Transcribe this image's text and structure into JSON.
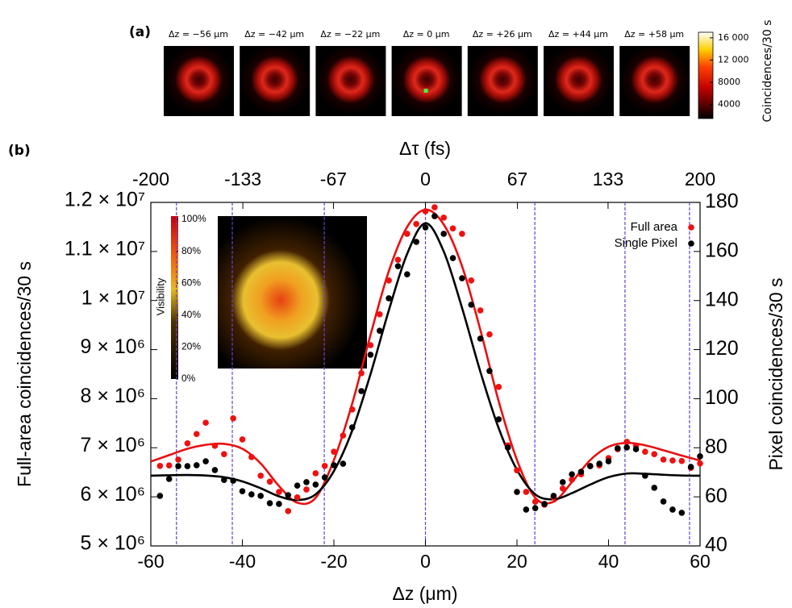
{
  "chart_data": [
    {
      "type": "image_strip",
      "panel_label": "(a)",
      "titles": [
        "Δz = −56 μm",
        "Δz = −42 μm",
        "Δz = −22 μm",
        "Δz = 0 μm",
        "Δz = +26 μm",
        "Δz = +44 μm",
        "Δz = +58 μm"
      ],
      "colorbar": {
        "label": "Coincidences/30 s",
        "lim": [
          1500,
          17000
        ],
        "ticks": [
          4000,
          8000,
          {
            "value": 12000,
            "label": "12 000"
          },
          {
            "value": 16000,
            "label": "16 000"
          }
        ]
      }
    },
    {
      "type": "scatter",
      "panel_label": "(b)",
      "xlabel": "Δz (μm)",
      "x2label": "Δτ (fs)",
      "ylabel": "Full-area coincidences/30 s",
      "y2label": "Pixel coincidences/30 s",
      "xlim": [
        -60,
        60
      ],
      "xticks": [
        -60,
        -40,
        -20,
        0,
        20,
        40,
        60
      ],
      "x2lim": [
        -200,
        200
      ],
      "x2ticks": [
        -200,
        -133,
        -67,
        0,
        67,
        133,
        200
      ],
      "ylim": [
        5000000,
        12000000
      ],
      "yticks": [
        {
          "value": 5000000,
          "label": "5 × 10⁶"
        },
        {
          "value": 6000000,
          "label": "6 × 10⁶"
        },
        {
          "value": 7000000,
          "label": "7 × 10⁶"
        },
        {
          "value": 8000000,
          "label": "8 × 10⁶"
        },
        {
          "value": 9000000,
          "label": "9 × 10⁶"
        },
        {
          "value": 10000000,
          "label": "1 × 10⁷"
        },
        {
          "value": 11000000,
          "label": "1.1 × 10⁷"
        },
        {
          "value": 12000000,
          "label": "1.2 × 10⁷"
        }
      ],
      "y2lim": [
        40,
        180
      ],
      "y2ticks": [
        40,
        60,
        80,
        100,
        120,
        140,
        160,
        180
      ],
      "legend": "upper right",
      "vlines": {
        "color": "#6a3fd0",
        "x": [
          -54.4,
          -42.2,
          -22.1,
          0,
          23.9,
          43.6,
          57.7
        ]
      },
      "series": [
        {
          "name": "Full area",
          "color": "#f01010",
          "x": [
            -58,
            -56,
            -54,
            -52,
            -50,
            -48,
            -46,
            -44,
            -42,
            -40,
            -38,
            -36,
            -34,
            -32,
            -30,
            -28,
            -26,
            -24,
            -22,
            -20,
            -18,
            -16,
            -14,
            -12,
            -10,
            -8,
            -6,
            -4,
            -2,
            0,
            2,
            4,
            6,
            8,
            10,
            12,
            14,
            16,
            18,
            20,
            22,
            24,
            26,
            28,
            30,
            32,
            34,
            36,
            38,
            40,
            42,
            44,
            46,
            48,
            50,
            52,
            54,
            56,
            58,
            60
          ],
          "values": [
            6630000,
            6640000,
            6760000,
            7090000,
            7280000,
            7510000,
            7040000,
            6870000,
            7600000,
            7170000,
            6810000,
            6430000,
            6310000,
            6100000,
            5710000,
            5990000,
            6150000,
            6480000,
            6630000,
            6920000,
            7250000,
            7780000,
            8520000,
            9090000,
            9720000,
            10410000,
            10830000,
            11360000,
            11560000,
            11820000,
            11900000,
            11690000,
            11470000,
            11360000,
            10410000,
            9800000,
            9310000,
            8240000,
            7050000,
            6540000,
            6100000,
            5900000,
            5840000,
            5990000,
            6170000,
            6350000,
            6460000,
            6630000,
            6640000,
            6790000,
            6970000,
            7120000,
            7040000,
            6920000,
            6870000,
            6760000,
            6740000,
            6730000,
            6590000,
            6680000
          ]
        },
        {
          "name": "Single Pixel",
          "color": "#000000",
          "axis": "y2",
          "x": [
            -58,
            -56,
            -54,
            -52,
            -50,
            -48,
            -46,
            -44,
            -42,
            -40,
            -38,
            -36,
            -34,
            -32,
            -30,
            -28,
            -26,
            -24,
            -22,
            -20,
            -18,
            -16,
            -14,
            -12,
            -10,
            -8,
            -6,
            -4,
            -2,
            0,
            2,
            4,
            6,
            8,
            10,
            12,
            14,
            16,
            18,
            20,
            22,
            24,
            26,
            28,
            30,
            32,
            34,
            36,
            38,
            40,
            42,
            44,
            46,
            48,
            50,
            52,
            54,
            56,
            58,
            60
          ],
          "values": [
            60.4,
            67.3,
            72.5,
            72.5,
            72.9,
            74.5,
            70.9,
            66.9,
            66.6,
            62.3,
            61.0,
            60.4,
            57.4,
            57.1,
            60.7,
            64.6,
            66.0,
            65.0,
            67.9,
            72.9,
            73.5,
            88.3,
            103.1,
            117.9,
            127.7,
            140.9,
            154.0,
            150.7,
            163.9,
            169.8,
            174.4,
            167.2,
            157.3,
            149.1,
            138.3,
            124.5,
            111.3,
            91.6,
            80.1,
            62.0,
            54.8,
            55.4,
            57.1,
            60.4,
            66.0,
            69.2,
            70.2,
            72.5,
            73.5,
            74.5,
            79.8,
            80.1,
            79.4,
            68.6,
            63.7,
            58.1,
            54.8,
            53.5,
            72.2,
            76.5
          ]
        }
      ],
      "fits": [
        {
          "color": "#e81010",
          "x": [
            -60,
            -56,
            -52,
            -48,
            -44,
            -40,
            -36,
            -32,
            -28,
            -24,
            -20,
            -16,
            -12,
            -8,
            -4,
            0,
            4,
            8,
            12,
            16,
            20,
            24,
            28,
            32,
            36,
            40,
            44,
            48,
            52,
            56,
            60
          ],
          "values": [
            6720000,
            6850000,
            6980000,
            7060000,
            7080000,
            6980000,
            6680000,
            6220000,
            5880000,
            5980000,
            6750000,
            7900000,
            9300000,
            10600000,
            11500000,
            11850000,
            11550000,
            10700000,
            9400000,
            7950000,
            6750000,
            5980000,
            5900000,
            6300000,
            6750000,
            7020000,
            7100000,
            7050000,
            6950000,
            6840000,
            6740000
          ]
        },
        {
          "color": "#000000",
          "axis": "y2",
          "x": [
            -60,
            -56,
            -52,
            -48,
            -44,
            -40,
            -36,
            -32,
            -28,
            -24,
            -20,
            -16,
            -12,
            -8,
            -4,
            0,
            4,
            8,
            12,
            16,
            20,
            24,
            28,
            32,
            36,
            40,
            44,
            48,
            52,
            56,
            60
          ],
          "values": [
            68.6,
            68.8,
            68.9,
            68.7,
            68.0,
            66.3,
            63.5,
            60.2,
            58.7,
            61.0,
            70.5,
            87,
            110,
            136,
            159,
            171.5,
            160,
            137,
            111,
            88,
            71,
            61,
            59,
            61.5,
            65,
            68,
            69.5,
            69.4,
            69,
            68.7,
            68.6
          ]
        }
      ],
      "inset": {
        "type": "image",
        "colorbar": {
          "label": "Visibility",
          "lim": [
            0,
            100
          ],
          "ticks": [
            {
              "value": 0,
              "label": "0%"
            },
            {
              "value": 20,
              "label": "20%"
            },
            {
              "value": 40,
              "label": "40%"
            },
            {
              "value": 60,
              "label": "60%"
            },
            {
              "value": 80,
              "label": "80%"
            },
            {
              "value": 100,
              "label": "100%"
            }
          ]
        }
      }
    }
  ]
}
